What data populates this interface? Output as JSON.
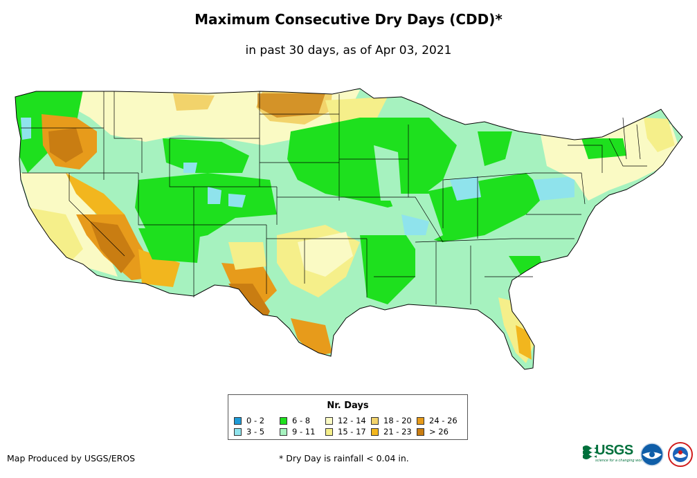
{
  "title": "Maximum Consecutive Dry Days (CDD)*",
  "subtitle": "in past 30 days, as of Apr 03, 2021",
  "legend": {
    "title": "Nr. Days",
    "items": [
      {
        "label": "0 - 2",
        "color": "#1e9bd7"
      },
      {
        "label": "3 - 5",
        "color": "#8fe3ec"
      },
      {
        "label": "6 - 8",
        "color": "#1ee01e"
      },
      {
        "label": "9 - 11",
        "color": "#a6f2bf"
      },
      {
        "label": "12 - 14",
        "color": "#fafac4"
      },
      {
        "label": "15 - 17",
        "color": "#f5ef8a"
      },
      {
        "label": "18 - 20",
        "color": "#f2d36b"
      },
      {
        "label": "21 - 23",
        "color": "#f2b61e"
      },
      {
        "label": "24 - 26",
        "color": "#e79b1b"
      },
      {
        "label": "> 26",
        "color": "#c97d12"
      }
    ]
  },
  "footer": {
    "producer": "Map Produced by USGS/EROS",
    "note": "* Dry Day is rainfall < 0.04 in."
  },
  "logos": {
    "usgs": "USGS",
    "usgs_tagline": "science for a changing world",
    "icons": [
      "usgs-logo-icon",
      "noaa-logo-icon",
      "nws-logo-icon"
    ]
  }
}
